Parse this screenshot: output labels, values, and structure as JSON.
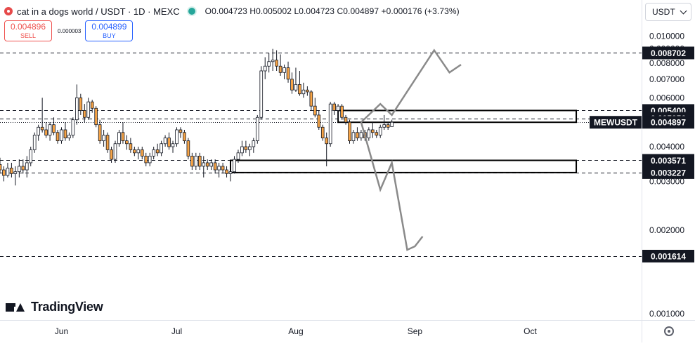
{
  "header": {
    "title": "cat in a dogs world / USDT · 1D · MEXC",
    "ohlc": "O0.004723 H0.005002 L0.004723 C0.004897 +0.000176 (+3.73%)",
    "sell_price": "0.004896",
    "sell_label": "SELL",
    "spread": "0.000003",
    "buy_price": "0.004899",
    "buy_label": "BUY",
    "currency": "USDT"
  },
  "branding": {
    "name": "TradingView"
  },
  "icons": [
    "coin-logo-icon",
    "market-status-icon",
    "chevron-down-icon",
    "tradingview-logo-icon",
    "settings-icon"
  ],
  "colors": {
    "up": "#26a69a",
    "down": "#ef5350",
    "candle_up": "#ffffff",
    "candle_down": "#f7a446",
    "outline": "#131722",
    "arrow": "#8a8a8a",
    "bg": "#ffffff"
  },
  "chart_data": {
    "type": "candlestick",
    "symbol": "MEWUSDT",
    "x_axis": {
      "labels": [
        "Jun",
        "Jul",
        "Aug",
        "Sep",
        "Oct"
      ]
    },
    "y_axis": {
      "scale": "log",
      "labels": [
        "0.010000",
        "0.009000",
        "0.008000",
        "0.007000",
        "0.006000",
        "0.005000",
        "0.004000",
        "0.003000",
        "0.002000",
        "0.001000"
      ],
      "range": [
        0.00095,
        0.0135
      ]
    },
    "price_lines": [
      {
        "label": "0.008702",
        "value": 0.008702,
        "style": "dashed"
      },
      {
        "label": "0.005400",
        "value": 0.0054,
        "style": "dashed"
      },
      {
        "label": "0.005056",
        "value": 0.005056,
        "style": "dashed"
      },
      {
        "label": "0.003571",
        "value": 0.003571,
        "style": "dashed"
      },
      {
        "label": "0.003227",
        "value": 0.003227,
        "style": "dashed"
      },
      {
        "label": "0.001614",
        "value": 0.001614,
        "style": "dashed"
      }
    ],
    "last_price": {
      "label": "0.004897",
      "symbol_label": "MEWUSDT",
      "value": 0.004897
    },
    "zones": [
      {
        "low": 0.004897,
        "high": 0.0054
      },
      {
        "low": 0.003227,
        "high": 0.003571
      }
    ],
    "projections": [
      {
        "name": "bullish",
        "points": [
          [
            "2024-08-18",
            0.0049
          ],
          [
            "2024-08-23",
            0.0057
          ],
          [
            "2024-08-26",
            0.0052
          ],
          [
            "2024-09-06",
            0.0089
          ],
          [
            "2024-09-10",
            0.0074
          ],
          [
            "2024-09-13",
            0.0079
          ]
        ]
      },
      {
        "name": "bearish",
        "points": [
          [
            "2024-08-18",
            0.0049
          ],
          [
            "2024-08-23",
            0.0028
          ],
          [
            "2024-08-26",
            0.0035
          ],
          [
            "2024-08-30",
            0.0017
          ],
          [
            "2024-09-01",
            0.00175
          ],
          [
            "2024-09-03",
            0.0019
          ]
        ]
      }
    ],
    "x_range": [
      "2024-05-16",
      "2024-10-30"
    ],
    "candles": [
      [
        "2024-05-16",
        0.00345,
        0.00365,
        0.0032,
        0.0033
      ],
      [
        "2024-05-17",
        0.0033,
        0.0034,
        0.003,
        0.00315
      ],
      [
        "2024-05-18",
        0.00315,
        0.0035,
        0.0031,
        0.00335
      ],
      [
        "2024-05-19",
        0.00335,
        0.0035,
        0.0031,
        0.0032
      ],
      [
        "2024-05-20",
        0.0032,
        0.0034,
        0.0029,
        0.00325
      ],
      [
        "2024-05-21",
        0.00325,
        0.0036,
        0.0031,
        0.0034
      ],
      [
        "2024-05-22",
        0.0034,
        0.0036,
        0.0032,
        0.0033
      ],
      [
        "2024-05-23",
        0.0033,
        0.0037,
        0.0031,
        0.0035
      ],
      [
        "2024-05-24",
        0.0035,
        0.004,
        0.0034,
        0.0039
      ],
      [
        "2024-05-25",
        0.0039,
        0.0045,
        0.0038,
        0.0044
      ],
      [
        "2024-05-26",
        0.0044,
        0.0048,
        0.0042,
        0.0047
      ],
      [
        "2024-05-27",
        0.0047,
        0.006,
        0.0045,
        0.0046
      ],
      [
        "2024-05-28",
        0.0046,
        0.0049,
        0.0043,
        0.0044
      ],
      [
        "2024-05-29",
        0.0044,
        0.0049,
        0.0042,
        0.0048
      ],
      [
        "2024-05-30",
        0.0048,
        0.0051,
        0.0044,
        0.0045
      ],
      [
        "2024-05-31",
        0.0045,
        0.0046,
        0.0041,
        0.0042
      ],
      [
        "2024-06-01",
        0.0042,
        0.0047,
        0.0041,
        0.0046
      ],
      [
        "2024-06-02",
        0.0046,
        0.0049,
        0.0042,
        0.0043
      ],
      [
        "2024-06-03",
        0.0043,
        0.0045,
        0.0042,
        0.0044
      ],
      [
        "2024-06-04",
        0.0044,
        0.0051,
        0.0043,
        0.005
      ],
      [
        "2024-06-05",
        0.005,
        0.0067,
        0.0048,
        0.006
      ],
      [
        "2024-06-06",
        0.006,
        0.0062,
        0.0052,
        0.0054
      ],
      [
        "2024-06-07",
        0.0054,
        0.0057,
        0.0049,
        0.0051
      ],
      [
        "2024-06-08",
        0.0051,
        0.006,
        0.005,
        0.0058
      ],
      [
        "2024-06-09",
        0.0058,
        0.0059,
        0.0053,
        0.0055
      ],
      [
        "2024-06-10",
        0.0055,
        0.0056,
        0.0047,
        0.0048
      ],
      [
        "2024-06-11",
        0.0048,
        0.005,
        0.0041,
        0.0042
      ],
      [
        "2024-06-12",
        0.0042,
        0.0046,
        0.004,
        0.0044
      ],
      [
        "2024-06-13",
        0.0044,
        0.0045,
        0.0038,
        0.0039
      ],
      [
        "2024-06-14",
        0.0039,
        0.004,
        0.0035,
        0.0036
      ],
      [
        "2024-06-15",
        0.0036,
        0.0042,
        0.0035,
        0.0041
      ],
      [
        "2024-06-16",
        0.0041,
        0.0046,
        0.004,
        0.0045
      ],
      [
        "2024-06-17",
        0.0045,
        0.0049,
        0.0041,
        0.0042
      ],
      [
        "2024-06-18",
        0.0042,
        0.0044,
        0.0039,
        0.0041
      ],
      [
        "2024-06-19",
        0.0041,
        0.0043,
        0.0038,
        0.0039
      ],
      [
        "2024-06-20",
        0.0039,
        0.004,
        0.0037,
        0.0038
      ],
      [
        "2024-06-21",
        0.0038,
        0.004,
        0.0036,
        0.0039
      ],
      [
        "2024-06-22",
        0.0039,
        0.004,
        0.0036,
        0.0037
      ],
      [
        "2024-06-23",
        0.0037,
        0.0038,
        0.0034,
        0.0035
      ],
      [
        "2024-06-24",
        0.0035,
        0.0038,
        0.0034,
        0.0037
      ],
      [
        "2024-06-25",
        0.0037,
        0.004,
        0.0036,
        0.0039
      ],
      [
        "2024-06-26",
        0.0039,
        0.0041,
        0.0037,
        0.0038
      ],
      [
        "2024-06-27",
        0.0038,
        0.0042,
        0.0037,
        0.0041
      ],
      [
        "2024-06-28",
        0.0041,
        0.0044,
        0.004,
        0.0043
      ],
      [
        "2024-06-29",
        0.0043,
        0.0045,
        0.0039,
        0.004
      ],
      [
        "2024-06-30",
        0.004,
        0.0042,
        0.0038,
        0.0041
      ],
      [
        "2024-07-01",
        0.0041,
        0.0047,
        0.004,
        0.0046
      ],
      [
        "2024-07-02",
        0.0046,
        0.0047,
        0.0043,
        0.0045
      ],
      [
        "2024-07-03",
        0.0045,
        0.0046,
        0.0041,
        0.0042
      ],
      [
        "2024-07-04",
        0.0042,
        0.0043,
        0.0036,
        0.0037
      ],
      [
        "2024-07-05",
        0.0037,
        0.0038,
        0.0033,
        0.0034
      ],
      [
        "2024-07-06",
        0.0034,
        0.0038,
        0.0033,
        0.0037
      ],
      [
        "2024-07-07",
        0.0037,
        0.0038,
        0.0033,
        0.0034
      ],
      [
        "2024-07-08",
        0.0034,
        0.0037,
        0.0031,
        0.0035
      ],
      [
        "2024-07-09",
        0.0035,
        0.0036,
        0.0033,
        0.0034
      ],
      [
        "2024-07-10",
        0.0034,
        0.0036,
        0.0033,
        0.0035
      ],
      [
        "2024-07-11",
        0.0035,
        0.0036,
        0.0032,
        0.0033
      ],
      [
        "2024-07-12",
        0.0033,
        0.0035,
        0.0031,
        0.0034
      ],
      [
        "2024-07-13",
        0.0034,
        0.0035,
        0.0032,
        0.0033
      ],
      [
        "2024-07-14",
        0.0033,
        0.0034,
        0.0031,
        0.0032
      ],
      [
        "2024-07-15",
        0.0032,
        0.0033,
        0.003,
        0.00325
      ],
      [
        "2024-07-16",
        0.00325,
        0.0037,
        0.0032,
        0.0036
      ],
      [
        "2024-07-17",
        0.0036,
        0.0039,
        0.0035,
        0.0038
      ],
      [
        "2024-07-18",
        0.0038,
        0.0042,
        0.0037,
        0.004
      ],
      [
        "2024-07-19",
        0.004,
        0.0042,
        0.0038,
        0.0039
      ],
      [
        "2024-07-20",
        0.0039,
        0.0041,
        0.0037,
        0.004
      ],
      [
        "2024-07-21",
        0.004,
        0.0043,
        0.0038,
        0.0042
      ],
      [
        "2024-07-22",
        0.0042,
        0.0052,
        0.0041,
        0.0051
      ],
      [
        "2024-07-23",
        0.0051,
        0.0078,
        0.005,
        0.0075
      ],
      [
        "2024-07-24",
        0.0075,
        0.0084,
        0.007,
        0.0078
      ],
      [
        "2024-07-25",
        0.0078,
        0.0087,
        0.0074,
        0.0081
      ],
      [
        "2024-07-26",
        0.0081,
        0.009,
        0.0075,
        0.0082
      ],
      [
        "2024-07-27",
        0.0082,
        0.0089,
        0.0075,
        0.0078
      ],
      [
        "2024-07-28",
        0.0078,
        0.0086,
        0.0072,
        0.0074
      ],
      [
        "2024-07-29",
        0.0074,
        0.0079,
        0.007,
        0.0077
      ],
      [
        "2024-07-30",
        0.0077,
        0.0081,
        0.0068,
        0.007
      ],
      [
        "2024-07-31",
        0.007,
        0.0074,
        0.0062,
        0.0064
      ],
      [
        "2024-08-01",
        0.0064,
        0.0077,
        0.0063,
        0.0067
      ],
      [
        "2024-08-02",
        0.0067,
        0.0075,
        0.0061,
        0.0062
      ],
      [
        "2024-08-03",
        0.0062,
        0.0068,
        0.006,
        0.0064
      ],
      [
        "2024-08-04",
        0.0064,
        0.0066,
        0.0061,
        0.0063
      ],
      [
        "2024-08-05",
        0.0063,
        0.0064,
        0.0054,
        0.0056
      ],
      [
        "2024-08-06",
        0.0056,
        0.006,
        0.0051,
        0.0052
      ],
      [
        "2024-08-07",
        0.0052,
        0.0054,
        0.0046,
        0.0047
      ],
      [
        "2024-08-08",
        0.0047,
        0.0048,
        0.0042,
        0.0043
      ],
      [
        "2024-08-09",
        0.0043,
        0.0045,
        0.0034,
        0.0041
      ],
      [
        "2024-08-10",
        0.0041,
        0.0058,
        0.004,
        0.0057
      ],
      [
        "2024-08-11",
        0.0057,
        0.0058,
        0.0052,
        0.0054
      ],
      [
        "2024-08-12",
        0.0054,
        0.0057,
        0.005,
        0.0056
      ],
      [
        "2024-08-13",
        0.0056,
        0.0057,
        0.005,
        0.0051
      ],
      [
        "2024-08-14",
        0.0051,
        0.0052,
        0.0048,
        0.0049
      ],
      [
        "2024-08-15",
        0.0049,
        0.005,
        0.0041,
        0.0042
      ],
      [
        "2024-08-16",
        0.0042,
        0.0046,
        0.0041,
        0.0045
      ],
      [
        "2024-08-17",
        0.0045,
        0.0047,
        0.0042,
        0.0043
      ],
      [
        "2024-08-18",
        0.0043,
        0.0046,
        0.0042,
        0.0045
      ],
      [
        "2024-08-19",
        0.0045,
        0.0046,
        0.0042,
        0.0043
      ],
      [
        "2024-08-20",
        0.0043,
        0.0047,
        0.0042,
        0.0046
      ],
      [
        "2024-08-21",
        0.0046,
        0.0049,
        0.0043,
        0.0045
      ],
      [
        "2024-08-22",
        0.0045,
        0.0046,
        0.0043,
        0.0044
      ],
      [
        "2024-08-23",
        0.0044,
        0.0048,
        0.0043,
        0.0047
      ],
      [
        "2024-08-24",
        0.0047,
        0.0052,
        0.0046,
        0.0048
      ],
      [
        "2024-08-25",
        0.0048,
        0.0049,
        0.0046,
        0.0047
      ],
      [
        "2024-08-26",
        0.004723,
        0.005002,
        0.004723,
        0.004897
      ]
    ]
  }
}
